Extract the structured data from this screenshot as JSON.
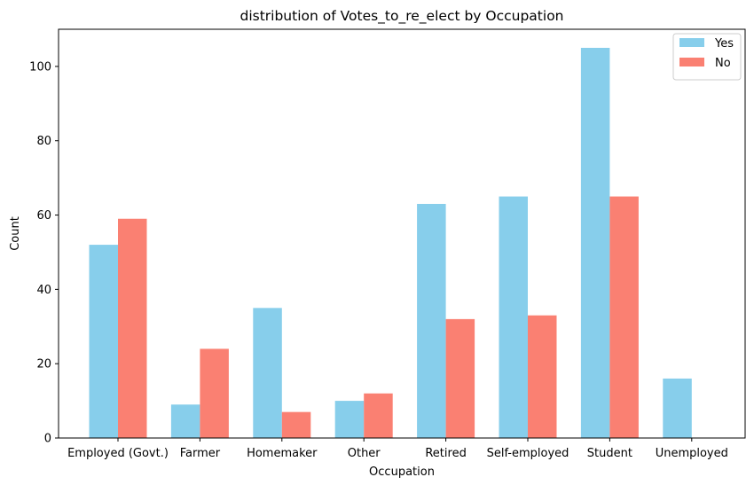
{
  "chart_data": {
    "type": "bar",
    "title": "distribution of Votes_to_re_elect by Occupation",
    "xlabel": "Occupation",
    "ylabel": "Count",
    "categories": [
      "Employed (Govt.)",
      "Farmer",
      "Homemaker",
      "Other",
      "Retired",
      "Self-employed",
      "Student",
      "Unemployed"
    ],
    "series": [
      {
        "name": "Yes",
        "color": "#87ceeb",
        "values": [
          52,
          9,
          35,
          10,
          63,
          65,
          105,
          16
        ]
      },
      {
        "name": "No",
        "color": "#fa8072",
        "values": [
          59,
          24,
          7,
          12,
          32,
          33,
          65,
          0
        ]
      }
    ],
    "ylim": [
      0,
      110
    ],
    "yticks": [
      0,
      20,
      40,
      60,
      80,
      100
    ],
    "grid": false,
    "legend_position": "top-right"
  }
}
